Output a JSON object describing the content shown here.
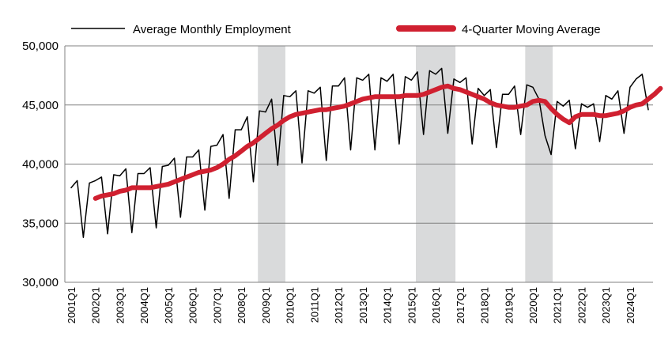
{
  "chart_data": {
    "type": "line",
    "title": "",
    "xlabel": "",
    "ylabel": "",
    "ylim": [
      30000,
      50000
    ],
    "yticks": [
      30000,
      35000,
      40000,
      45000,
      50000
    ],
    "ytick_labels": [
      "30,000",
      "35,000",
      "40,000",
      "45,000",
      "50,000"
    ],
    "grid": "horizontal",
    "legend_position": "top",
    "x_ticks": [
      "2001Q1",
      "2002Q1",
      "2003Q1",
      "2004Q1",
      "2005Q1",
      "2006Q1",
      "2007Q1",
      "2008Q1",
      "2009Q1",
      "2010Q1",
      "2011Q1",
      "2012Q1",
      "2013Q1",
      "2014Q1",
      "2015Q1",
      "2016Q1",
      "2017Q1",
      "2018Q1",
      "2019Q1",
      "2020Q1",
      "2021Q1",
      "2022Q1",
      "2023Q1",
      "2024Q1"
    ],
    "recession_shading": [
      {
        "from": "2008Q4",
        "to": "2009Q4",
        "color": "#d9dadb"
      },
      {
        "from": "2015Q2",
        "to": "2016Q4",
        "color": "#d9dadb"
      },
      {
        "from": "2019Q4",
        "to": "2020Q4",
        "color": "#d9dadb"
      }
    ],
    "series": [
      {
        "name": "Average Monthly Employment",
        "color": "#000000",
        "start": "2001Q1",
        "values": [
          38000,
          38600,
          33800,
          38400,
          38600,
          38900,
          34100,
          39100,
          39000,
          39600,
          34200,
          39200,
          39200,
          39700,
          34600,
          39800,
          39900,
          40500,
          35500,
          40600,
          40600,
          41200,
          36100,
          41500,
          41600,
          42500,
          37100,
          42900,
          42900,
          44000,
          38500,
          44500,
          44400,
          45500,
          39900,
          45800,
          45700,
          46200,
          40100,
          46200,
          46000,
          46500,
          40300,
          46600,
          46600,
          47300,
          41200,
          47300,
          47100,
          47600,
          41200,
          47300,
          47000,
          47600,
          41700,
          47400,
          47100,
          47800,
          42500,
          47900,
          47600,
          48100,
          42600,
          47200,
          46900,
          47300,
          41700,
          46400,
          45800,
          46300,
          41400,
          45900,
          45900,
          46600,
          42500,
          46700,
          46500,
          45500,
          42400,
          40800,
          45300,
          44900,
          45400,
          41300,
          45100,
          44800,
          45100,
          41900,
          45800,
          45500,
          46200,
          42600,
          46500,
          47200,
          47600,
          44600
        ]
      },
      {
        "name": "4-Quarter Moving Average",
        "color": "#d02030",
        "start": "2002Q1",
        "values": [
          37100,
          37300,
          37400,
          37500,
          37700,
          37800,
          38000,
          38000,
          38000,
          38000,
          38100,
          38200,
          38300,
          38500,
          38700,
          38900,
          39100,
          39300,
          39400,
          39500,
          39700,
          40000,
          40400,
          40700,
          41100,
          41500,
          41800,
          42200,
          42600,
          43000,
          43300,
          43700,
          44000,
          44200,
          44300,
          44400,
          44500,
          44600,
          44600,
          44700,
          44800,
          44900,
          45100,
          45300,
          45500,
          45600,
          45700,
          45700,
          45700,
          45700,
          45700,
          45800,
          45800,
          45800,
          45900,
          46100,
          46300,
          46500,
          46600,
          46400,
          46300,
          46100,
          45900,
          45700,
          45500,
          45200,
          45000,
          44900,
          44800,
          44800,
          44900,
          45000,
          45300,
          45400,
          45300,
          44700,
          44200,
          43800,
          43500,
          44000,
          44200,
          44200,
          44200,
          44100,
          44100,
          44200,
          44300,
          44500,
          44800,
          45000,
          45100,
          45500,
          45900,
          46400
        ]
      }
    ]
  }
}
